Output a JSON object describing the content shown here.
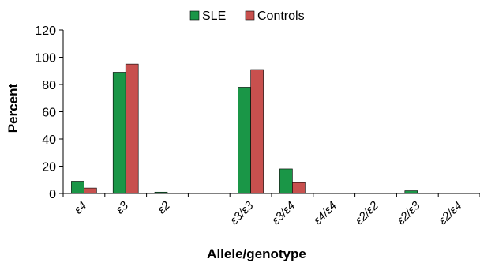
{
  "chart_data": {
    "type": "bar",
    "categories": [
      "ε4",
      "ε3",
      "ε2",
      "",
      "ε3/ε3",
      "ε3/ε4",
      "ε4/ε4",
      "ε2/ε2",
      "ε2/ε3",
      "ε2/ε4"
    ],
    "series": [
      {
        "name": "SLE",
        "color": "#1a9647",
        "values": [
          9,
          89,
          1,
          null,
          78,
          18,
          0,
          0,
          2,
          0
        ]
      },
      {
        "name": "Controls",
        "color": "#c8504e",
        "values": [
          4,
          95,
          0,
          null,
          91,
          8,
          0,
          0,
          0,
          0
        ]
      }
    ],
    "xlabel": "Allele/genotype",
    "ylabel": "Percent",
    "ylim": [
      0,
      120
    ],
    "yticks": [
      0,
      20,
      40,
      60,
      80,
      100,
      120
    ],
    "grid": false,
    "legend_position": "top-center"
  }
}
